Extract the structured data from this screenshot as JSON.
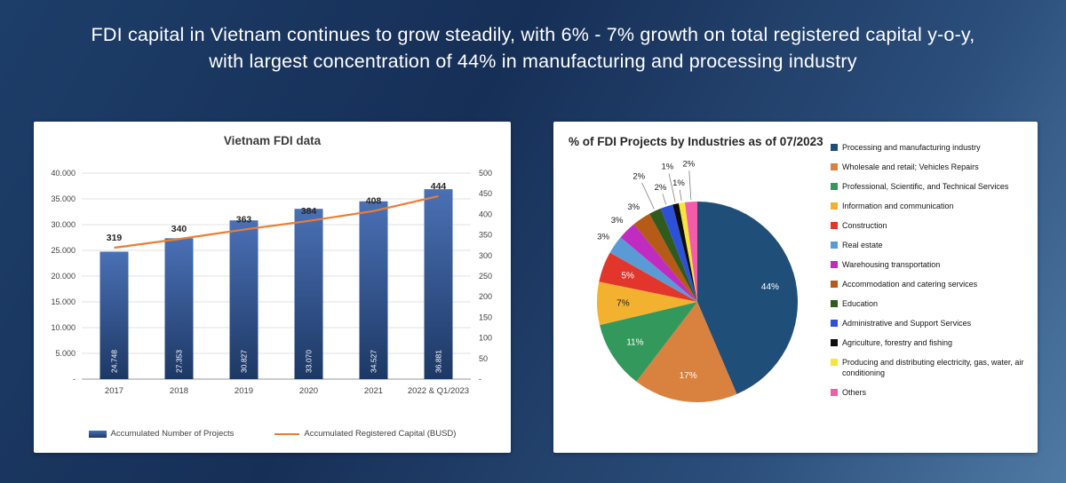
{
  "slide": {
    "title_line1": "FDI capital in Vietnam continues to grow steadily, with 6% - 7% growth on total registered capital y-o-y,",
    "title_line2": "with largest concentration of 44% in manufacturing and processing industry",
    "background_from": "#162f57",
    "background_to": "#4f7aa4",
    "text_color": "#ffffff"
  },
  "chart_data": [
    {
      "type": "bar",
      "subtype": "combo-bar-line",
      "title": "Vietnam FDI data",
      "categories": [
        "2017",
        "2018",
        "2019",
        "2020",
        "2021",
        "2022 & Q1/2023"
      ],
      "series": [
        {
          "name": "Accumulated Number of Projects",
          "chart": "bar",
          "axis": "left",
          "values": [
            24748,
            27353,
            30827,
            33070,
            34527,
            36881
          ],
          "labels": [
            "24.748",
            "27.353",
            "30.827",
            "33.070",
            "34.527",
            "36.881"
          ],
          "color_top": "#4a70b5",
          "color_bottom": "#1d3864"
        },
        {
          "name": "Accumulated Registered Capital (BUSD)",
          "chart": "line",
          "axis": "right",
          "values": [
            319,
            340,
            363,
            384,
            408,
            444
          ],
          "labels": [
            "319",
            "340",
            "363",
            "384",
            "408",
            "444"
          ],
          "color": "#ED7D31"
        }
      ],
      "left_axis": {
        "min": 0,
        "max": 40000,
        "step": 5000,
        "ticks": [
          "40.000",
          "35.000",
          "30.000",
          "25.000",
          "20.000",
          "15.000",
          "10.000",
          "5.000",
          "-"
        ]
      },
      "right_axis": {
        "min": 0,
        "max": 500,
        "step": 50,
        "ticks": [
          "500",
          "450",
          "400",
          "350",
          "300",
          "250",
          "200",
          "150",
          "100",
          "50",
          "-"
        ]
      },
      "grid": true,
      "legend_position": "bottom"
    },
    {
      "type": "pie",
      "title": "% of FDI Projects by Industries as of 07/2023",
      "legend_position": "right",
      "slices": [
        {
          "label": "Processing and manufacturing industry",
          "value": 44,
          "pct": "44%",
          "color": "#1F4E79"
        },
        {
          "label": "Wholesale and retail; Vehicles Repairs",
          "value": 17,
          "pct": "17%",
          "color": "#D9813F"
        },
        {
          "label": "Professional, Scientific, and Technical Services",
          "value": 11,
          "pct": "11%",
          "color": "#33985B"
        },
        {
          "label": "Information and communication",
          "value": 7,
          "pct": "7%",
          "color": "#F2B12E"
        },
        {
          "label": "Construction",
          "value": 5,
          "pct": "5%",
          "color": "#E2352B"
        },
        {
          "label": "Real estate",
          "value": 3,
          "pct": "3%",
          "color": "#5B9BD5"
        },
        {
          "label": "Warehousing transportation",
          "value": 3,
          "pct": "3%",
          "color": "#C02BC0"
        },
        {
          "label": "Accommodation and catering services",
          "value": 3,
          "pct": "3%",
          "color": "#B55A17"
        },
        {
          "label": "Education",
          "value": 2,
          "pct": "2%",
          "color": "#2F5B1F"
        },
        {
          "label": "Administrative and Support Services",
          "value": 2,
          "pct": "2%",
          "color": "#2D50D8"
        },
        {
          "label": "Agriculture, forestry and fishing",
          "value": 1,
          "pct": "1%",
          "color": "#0D0D0D"
        },
        {
          "label": "Producing and distributing electricity, gas, water, air conditioning",
          "value": 1,
          "pct": "1%",
          "color": "#F7E53B"
        },
        {
          "label": "Others",
          "value": 2,
          "pct": "2%",
          "color": "#F25CA8"
        }
      ]
    }
  ]
}
